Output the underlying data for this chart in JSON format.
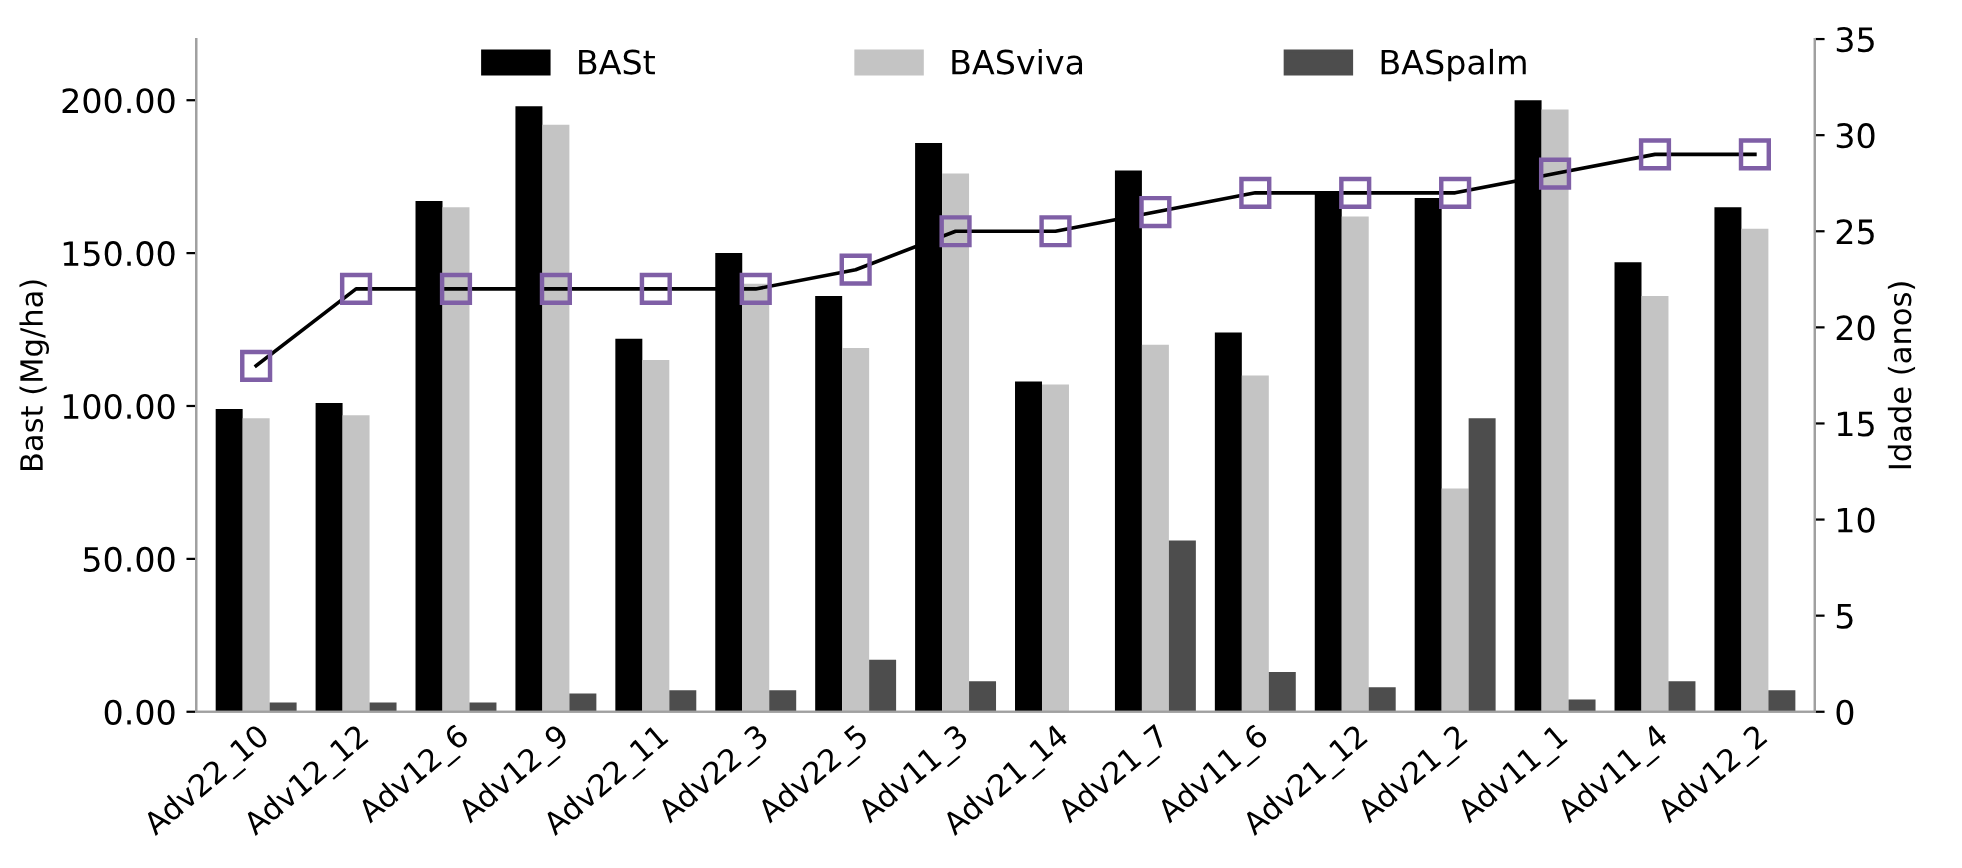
{
  "chart_data": {
    "type": "bar",
    "ylabel": "Bast (Mg/ha)",
    "y2label": "Idade (anos)",
    "categories": [
      "Adv22_10",
      "Adv12_12",
      "Adv12_6",
      "Adv12_9",
      "Adv22_11",
      "Adv22_3",
      "Adv22_5",
      "Adv11_3",
      "Adv21_14",
      "Adv21_7",
      "Adv11_6",
      "Adv21_12",
      "Adv21_2",
      "Adv11_1",
      "Adv11_4",
      "Adv12_2"
    ],
    "series": [
      {
        "name": "BASt",
        "color": "#000000",
        "values": [
          99,
          101,
          167,
          198,
          122,
          150,
          136,
          186,
          108,
          177,
          124,
          170,
          168,
          200,
          147,
          165
        ]
      },
      {
        "name": "BASviva",
        "color": "#c4c4c4",
        "values": [
          96,
          97,
          165,
          192,
          115,
          140,
          119,
          176,
          107,
          120,
          110,
          162,
          73,
          197,
          136,
          158
        ]
      },
      {
        "name": "BASpalm",
        "color": "#4d4d4d",
        "values": [
          3,
          3,
          3,
          6,
          7,
          7,
          17,
          10,
          0,
          56,
          13,
          8,
          96,
          4,
          10,
          7
        ]
      },
      {
        "type": "line",
        "axis": "y2",
        "color": "#7f5fa6",
        "marker": "square",
        "values": [
          18,
          22,
          22,
          22,
          22,
          22,
          23,
          25,
          25,
          26,
          27,
          27,
          27,
          28,
          29,
          29
        ]
      }
    ],
    "ylim": [
      0,
      220
    ],
    "yticks": [
      {
        "value": 0,
        "label": "0.00"
      },
      {
        "value": 50,
        "label": "50.00"
      },
      {
        "value": 100,
        "label": "100.00"
      },
      {
        "value": 150,
        "label": "150.00"
      },
      {
        "value": 200,
        "label": "200.00"
      }
    ],
    "y2lim": [
      0,
      35
    ],
    "y2ticks": [
      0,
      5,
      10,
      15,
      20,
      25,
      30,
      35
    ],
    "legend": "top",
    "grid": false
  }
}
